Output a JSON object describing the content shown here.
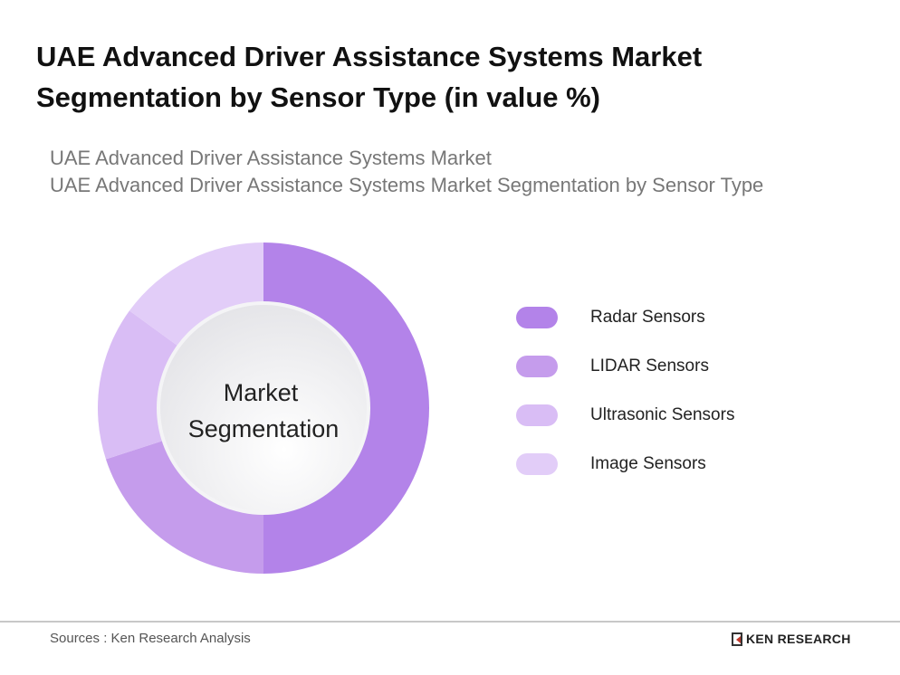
{
  "title": "UAE Advanced Driver Assistance Systems Market Segmentation by Sensor Type (in value %)",
  "subtitles": [
    "UAE Advanced Driver Assistance Systems Market",
    "UAE Advanced Driver Assistance Systems Market Segmentation by Sensor Type"
  ],
  "chart_data": {
    "type": "pie",
    "variant": "donut",
    "center_label": "Market Segmentation",
    "categories": [
      "Radar Sensors",
      "LIDAR Sensors",
      "Ultrasonic Sensors",
      "Image Sensors"
    ],
    "values": [
      50,
      20,
      15,
      15
    ],
    "colors": [
      "#b383e9",
      "#c59cec",
      "#d9bdf5",
      "#e2cdf8"
    ],
    "legend_placement": "right"
  },
  "footer": {
    "source": "Sources : Ken Research Analysis",
    "logo": "KEN RESEARCH"
  }
}
